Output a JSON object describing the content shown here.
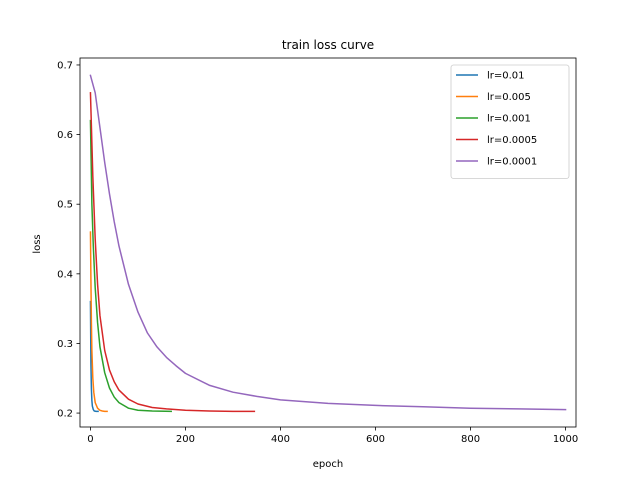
{
  "chart_data": {
    "type": "line",
    "title": "train loss curve",
    "xlabel": "epoch",
    "ylabel": "loss",
    "xlim": [
      -22,
      1022
    ],
    "ylim": [
      0.18,
      0.71
    ],
    "xticks": [
      0,
      200,
      400,
      600,
      800,
      1000
    ],
    "yticks": [
      0.2,
      0.3,
      0.4,
      0.5,
      0.6,
      0.7
    ],
    "xtick_labels": [
      "0",
      "200",
      "400",
      "600",
      "800",
      "1000"
    ],
    "ytick_labels": [
      "0.2",
      "0.3",
      "0.4",
      "0.5",
      "0.6",
      "0.7"
    ],
    "grid": false,
    "legend_position": "top-right",
    "series": [
      {
        "name": "lr=0.01",
        "color": "#1f77b4",
        "x": [
          0,
          1,
          2,
          3,
          4,
          6,
          8,
          12,
          16
        ],
        "y": [
          0.36,
          0.27,
          0.235,
          0.218,
          0.21,
          0.205,
          0.203,
          0.2025,
          0.2025
        ]
      },
      {
        "name": "lr=0.005",
        "color": "#ff7f0e",
        "x": [
          0,
          1,
          2,
          3,
          5,
          7,
          10,
          15,
          20,
          25,
          30,
          35
        ],
        "y": [
          0.46,
          0.39,
          0.33,
          0.29,
          0.25,
          0.23,
          0.215,
          0.207,
          0.204,
          0.203,
          0.2025,
          0.2025
        ]
      },
      {
        "name": "lr=0.001",
        "color": "#2ca02c",
        "x": [
          0,
          3,
          6,
          10,
          15,
          20,
          30,
          40,
          50,
          60,
          80,
          100,
          130,
          170
        ],
        "y": [
          0.62,
          0.5,
          0.44,
          0.38,
          0.33,
          0.295,
          0.258,
          0.236,
          0.223,
          0.215,
          0.207,
          0.204,
          0.203,
          0.2025
        ]
      },
      {
        "name": "lr=0.0005",
        "color": "#d62728",
        "x": [
          0,
          5,
          10,
          15,
          20,
          30,
          40,
          50,
          60,
          80,
          100,
          130,
          160,
          200,
          250,
          300,
          345
        ],
        "y": [
          0.66,
          0.54,
          0.45,
          0.385,
          0.34,
          0.29,
          0.262,
          0.245,
          0.233,
          0.22,
          0.213,
          0.208,
          0.206,
          0.204,
          0.203,
          0.2025,
          0.2025
        ]
      },
      {
        "name": "lr=0.0001",
        "color": "#9467bd",
        "x": [
          0,
          10,
          20,
          30,
          40,
          50,
          60,
          80,
          100,
          120,
          140,
          160,
          180,
          200,
          250,
          300,
          350,
          400,
          500,
          600,
          700,
          800,
          900,
          1000
        ],
        "y": [
          0.685,
          0.66,
          0.61,
          0.56,
          0.515,
          0.475,
          0.44,
          0.385,
          0.345,
          0.315,
          0.295,
          0.28,
          0.268,
          0.257,
          0.24,
          0.23,
          0.224,
          0.219,
          0.214,
          0.211,
          0.209,
          0.207,
          0.206,
          0.205
        ]
      }
    ]
  }
}
